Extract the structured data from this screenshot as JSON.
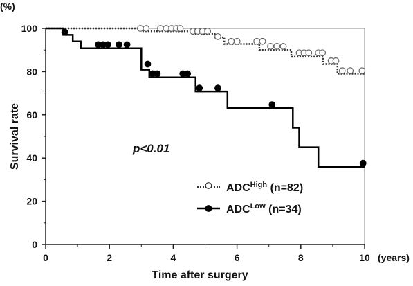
{
  "chart_data": {
    "type": "line",
    "subtype": "kaplan-meier",
    "y_unit_label": "(%)",
    "ylabel": "Survival rate",
    "xlabel": "Time after surgery",
    "x_unit_label": "(years)",
    "xlim": [
      0,
      10
    ],
    "ylim": [
      0,
      100
    ],
    "x_ticks": [
      "0",
      "2",
      "4",
      "6",
      "8",
      "10"
    ],
    "y_ticks": [
      "0",
      "20",
      "40",
      "60",
      "80",
      "100"
    ],
    "grid": false,
    "annotation": "p<0.01",
    "legend_position": "lower-right",
    "series": [
      {
        "name": "ADC^High (n=82)",
        "legend_base": "ADC",
        "legend_sup": "High",
        "legend_suffix": " (n=82)",
        "line_style": "dotted",
        "marker": "open-circle",
        "color": "#333333",
        "steps": [
          [
            0,
            100
          ],
          [
            2.9,
            100
          ],
          [
            3.0,
            98.7
          ],
          [
            4.5,
            98.7
          ],
          [
            4.6,
            97.4
          ],
          [
            5.2,
            97.4
          ],
          [
            5.3,
            95.8
          ],
          [
            5.5,
            95.8
          ],
          [
            5.6,
            92.8
          ],
          [
            6.6,
            92.8
          ],
          [
            6.7,
            90.0
          ],
          [
            7.6,
            90.0
          ],
          [
            7.7,
            86.9
          ],
          [
            8.6,
            86.9
          ],
          [
            8.7,
            83.5
          ],
          [
            9.0,
            83.5
          ],
          [
            9.15,
            79.0
          ],
          [
            10.0,
            79.0
          ]
        ],
        "censored": [
          [
            2.97,
            100
          ],
          [
            3.15,
            100
          ],
          [
            3.6,
            100
          ],
          [
            3.78,
            100
          ],
          [
            3.95,
            100
          ],
          [
            4.1,
            100
          ],
          [
            4.22,
            100
          ],
          [
            4.62,
            98.7
          ],
          [
            4.77,
            98.7
          ],
          [
            4.92,
            98.7
          ],
          [
            5.08,
            98.7
          ],
          [
            5.4,
            96.2
          ],
          [
            5.82,
            94.0
          ],
          [
            6.0,
            94.0
          ],
          [
            6.62,
            94.0
          ],
          [
            6.8,
            94.0
          ],
          [
            7.05,
            91.7
          ],
          [
            7.25,
            91.7
          ],
          [
            7.45,
            91.7
          ],
          [
            7.95,
            88.7
          ],
          [
            8.1,
            88.7
          ],
          [
            8.25,
            88.7
          ],
          [
            8.55,
            88.7
          ],
          [
            8.68,
            88.7
          ],
          [
            8.95,
            85.0
          ],
          [
            9.1,
            85.0
          ],
          [
            9.3,
            80.4
          ],
          [
            9.55,
            80.4
          ],
          [
            9.92,
            80.4
          ]
        ]
      },
      {
        "name": "ADC^Low (n=34)",
        "legend_base": "ADC",
        "legend_sup": "Low",
        "legend_suffix": " (n=34)",
        "line_style": "solid",
        "marker": "filled-circle",
        "color": "#000000",
        "steps": [
          [
            0,
            100
          ],
          [
            0.55,
            100
          ],
          [
            0.55,
            97.0
          ],
          [
            0.85,
            97.0
          ],
          [
            0.85,
            94.0
          ],
          [
            1.1,
            94.0
          ],
          [
            1.1,
            90.8
          ],
          [
            3.0,
            90.8
          ],
          [
            3.0,
            80.9
          ],
          [
            3.25,
            80.9
          ],
          [
            3.25,
            77.3
          ],
          [
            4.7,
            77.3
          ],
          [
            4.7,
            70.8
          ],
          [
            5.7,
            70.8
          ],
          [
            5.7,
            63.1
          ],
          [
            7.75,
            63.1
          ],
          [
            7.75,
            54.0
          ],
          [
            7.95,
            54.0
          ],
          [
            7.95,
            45.0
          ],
          [
            8.55,
            45.0
          ],
          [
            8.55,
            36.0
          ],
          [
            10.0,
            36.0
          ]
        ],
        "censored": [
          [
            0.6,
            98.3
          ],
          [
            1.65,
            92.5
          ],
          [
            1.8,
            92.5
          ],
          [
            1.95,
            92.5
          ],
          [
            2.3,
            92.5
          ],
          [
            2.55,
            92.5
          ],
          [
            3.2,
            83.5
          ],
          [
            3.35,
            79.0
          ],
          [
            3.5,
            79.0
          ],
          [
            4.3,
            79.0
          ],
          [
            4.45,
            79.0
          ],
          [
            4.82,
            72.4
          ],
          [
            5.4,
            72.4
          ],
          [
            7.1,
            64.7
          ],
          [
            9.95,
            37.6
          ]
        ]
      }
    ]
  }
}
